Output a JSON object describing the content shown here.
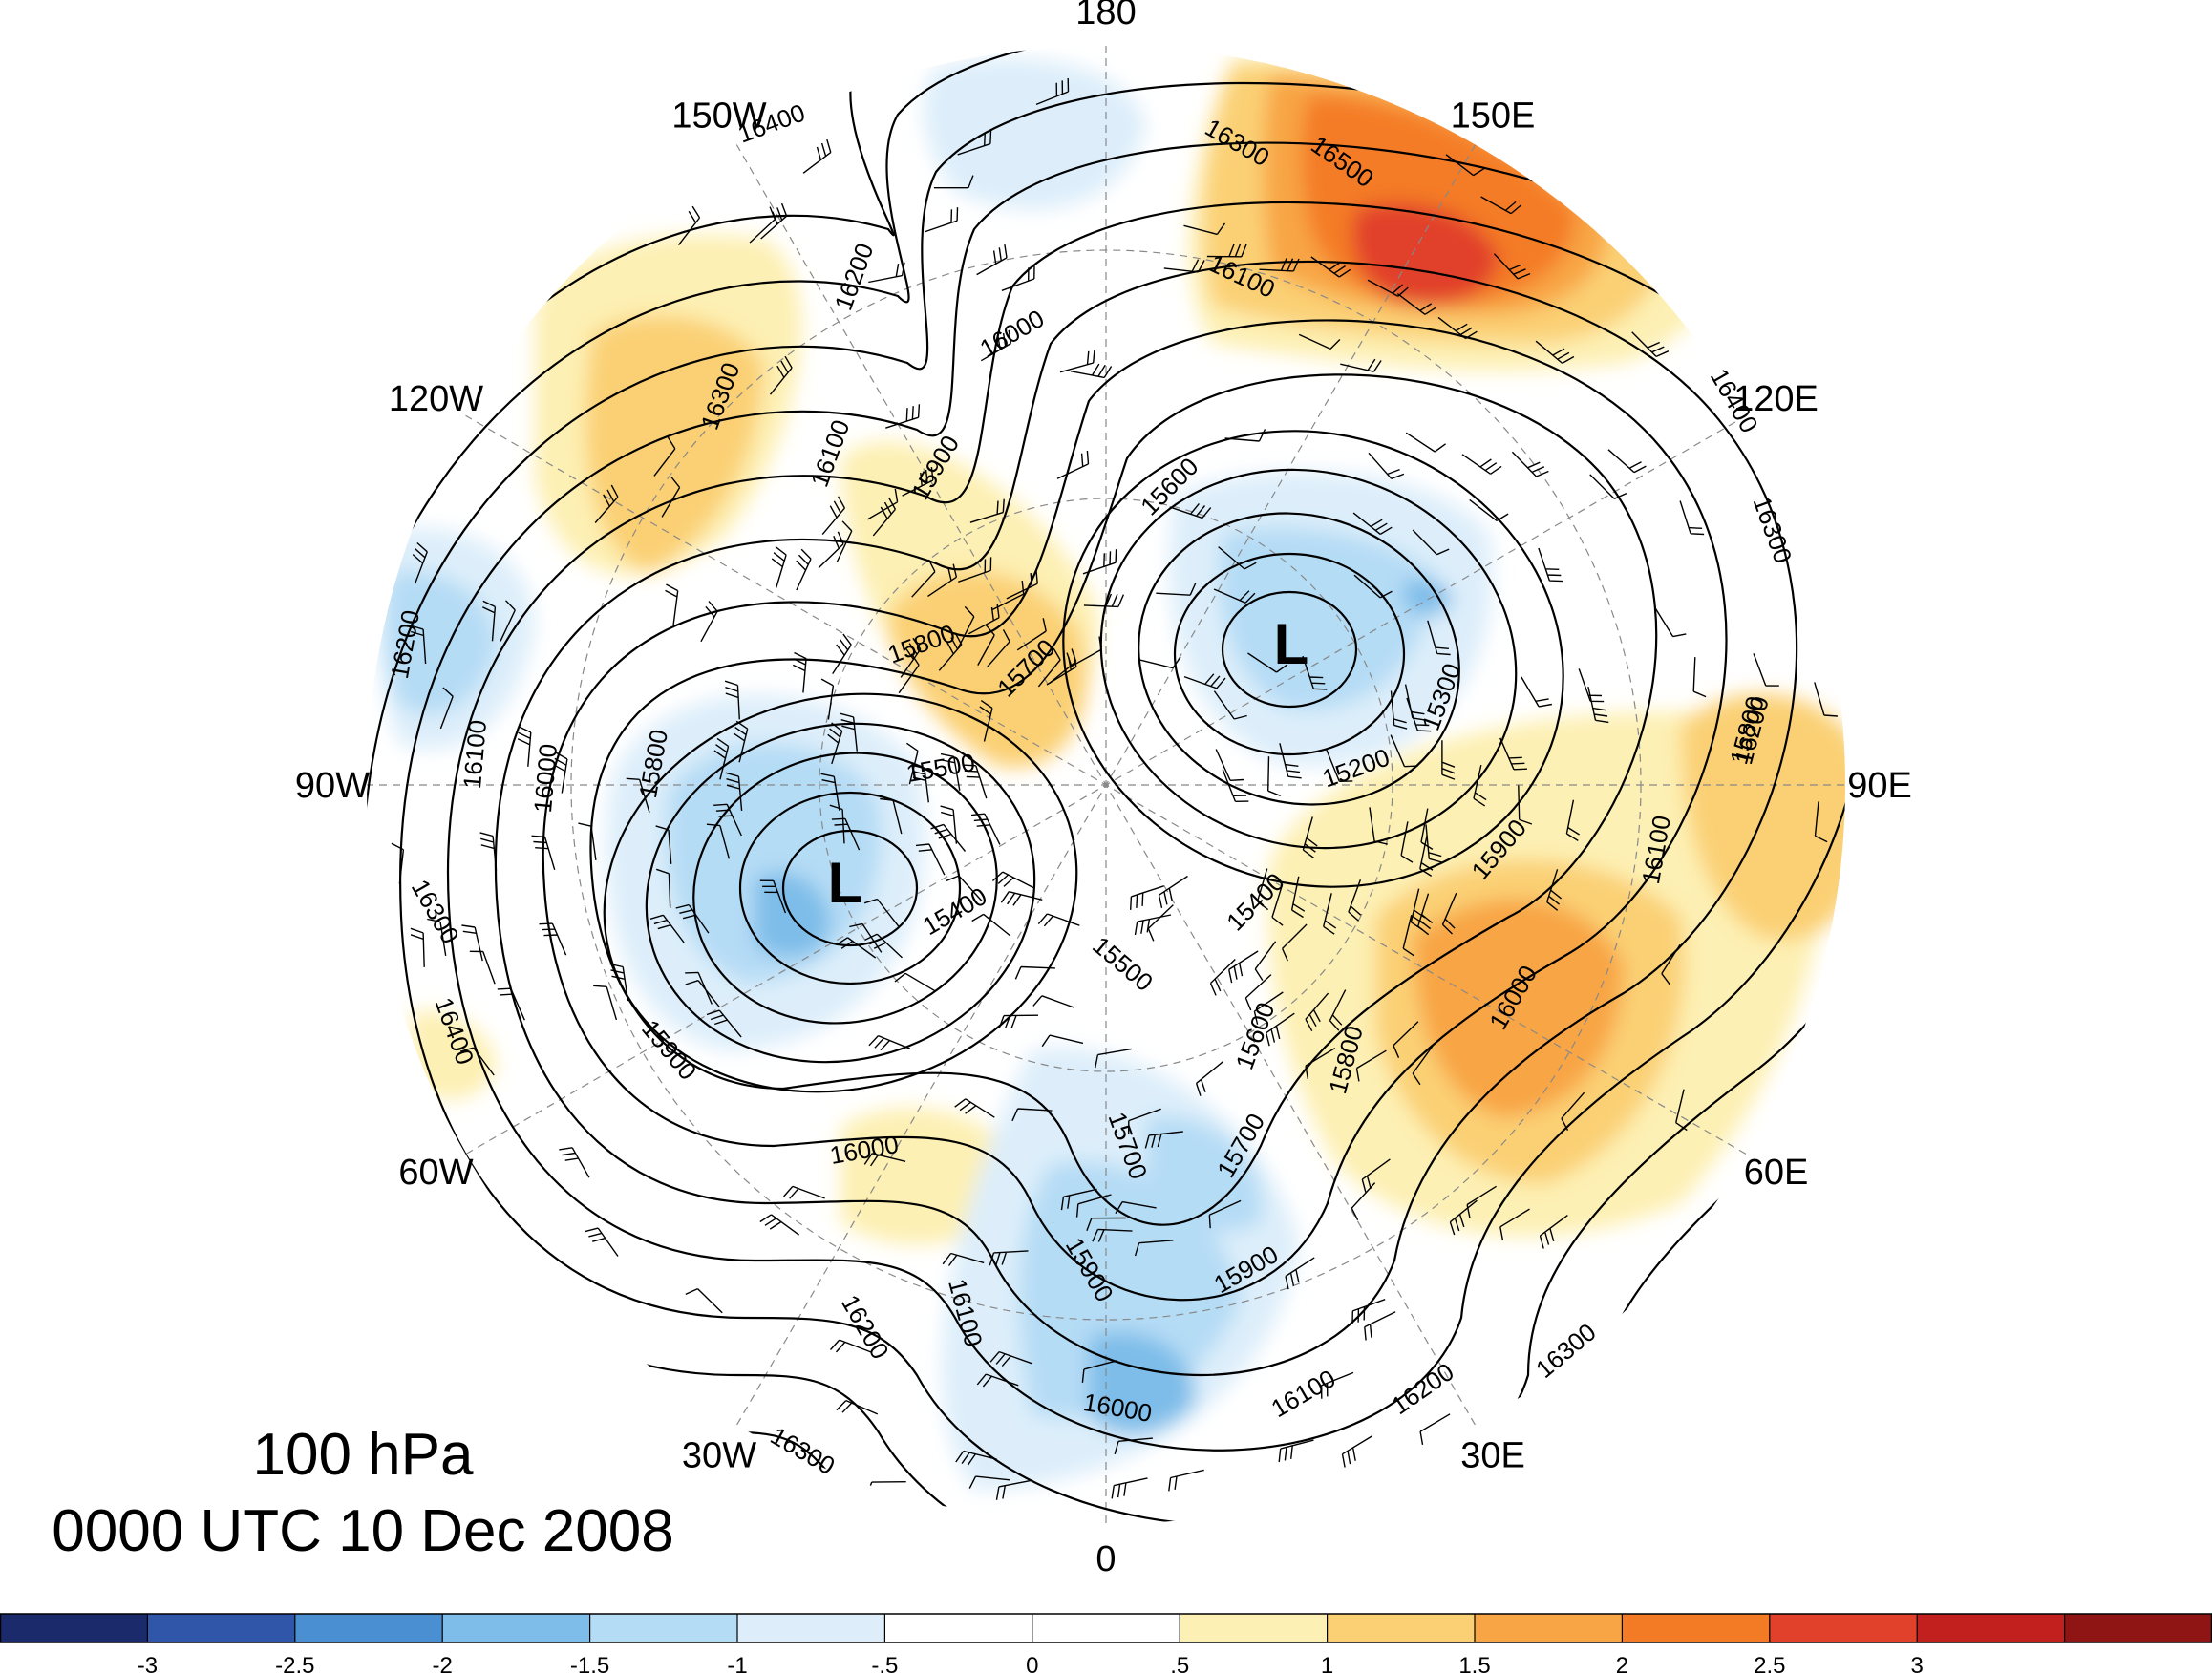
{
  "titles": {
    "level": "100 hPa",
    "time": "0000 UTC 10 Dec 2008"
  },
  "longitude_labels": [
    {
      "text": "180",
      "angle": 180
    },
    {
      "text": "150E",
      "angle": 150
    },
    {
      "text": "120E",
      "angle": 120
    },
    {
      "text": "90E",
      "angle": 90
    },
    {
      "text": "60E",
      "angle": 60
    },
    {
      "text": "30E",
      "angle": 30
    },
    {
      "text": "0",
      "angle": 0
    },
    {
      "text": "30W",
      "angle": -30
    },
    {
      "text": "60W",
      "angle": -60
    },
    {
      "text": "90W",
      "angle": -90
    },
    {
      "text": "120W",
      "angle": -120
    },
    {
      "text": "150W",
      "angle": -150
    }
  ],
  "lows": [
    {
      "text": "L",
      "id": "low-siberia"
    },
    {
      "text": "L",
      "id": "low-canada"
    }
  ],
  "contour_labels": [
    "16400",
    "16300",
    "16500",
    "16100",
    "16200",
    "16000",
    "16300",
    "16100",
    "15900",
    "16400",
    "16300",
    "15600",
    "15800",
    "15700",
    "15300",
    "15200",
    "16200",
    "15800",
    "15500",
    "16200",
    "16100",
    "16000",
    "15800",
    "15900",
    "16100",
    "15400",
    "15400",
    "15500",
    "16000",
    "16300",
    "15600",
    "15800",
    "16400",
    "15900",
    "15700",
    "15700",
    "16000",
    "16100",
    "15900",
    "15900",
    "16000",
    "16100",
    "16200",
    "16300",
    "16200",
    "16300"
  ],
  "colorbar": {
    "colors": [
      "#1b2a6b",
      "#2f56a8",
      "#4a8fd1",
      "#7ebde9",
      "#b5dcf5",
      "#ddeefa",
      "#ffffff",
      "#ffffff",
      "#fdf0b4",
      "#fbd075",
      "#f8a545",
      "#f47b26",
      "#e1402a",
      "#c1201f",
      "#8f1414"
    ],
    "ticks": [
      "-3",
      "-2.5",
      "-2",
      "-1.5",
      "-1",
      "-.5",
      "0",
      ".5",
      "1",
      "1.5",
      "2",
      "2.5",
      "3"
    ]
  },
  "legend_ticks": [
    "-3",
    "-2.5",
    "-2",
    "-1.5",
    "-1",
    "-.5",
    "0",
    ".5",
    "1",
    "1.5",
    "2",
    "2.5",
    "3"
  ]
}
